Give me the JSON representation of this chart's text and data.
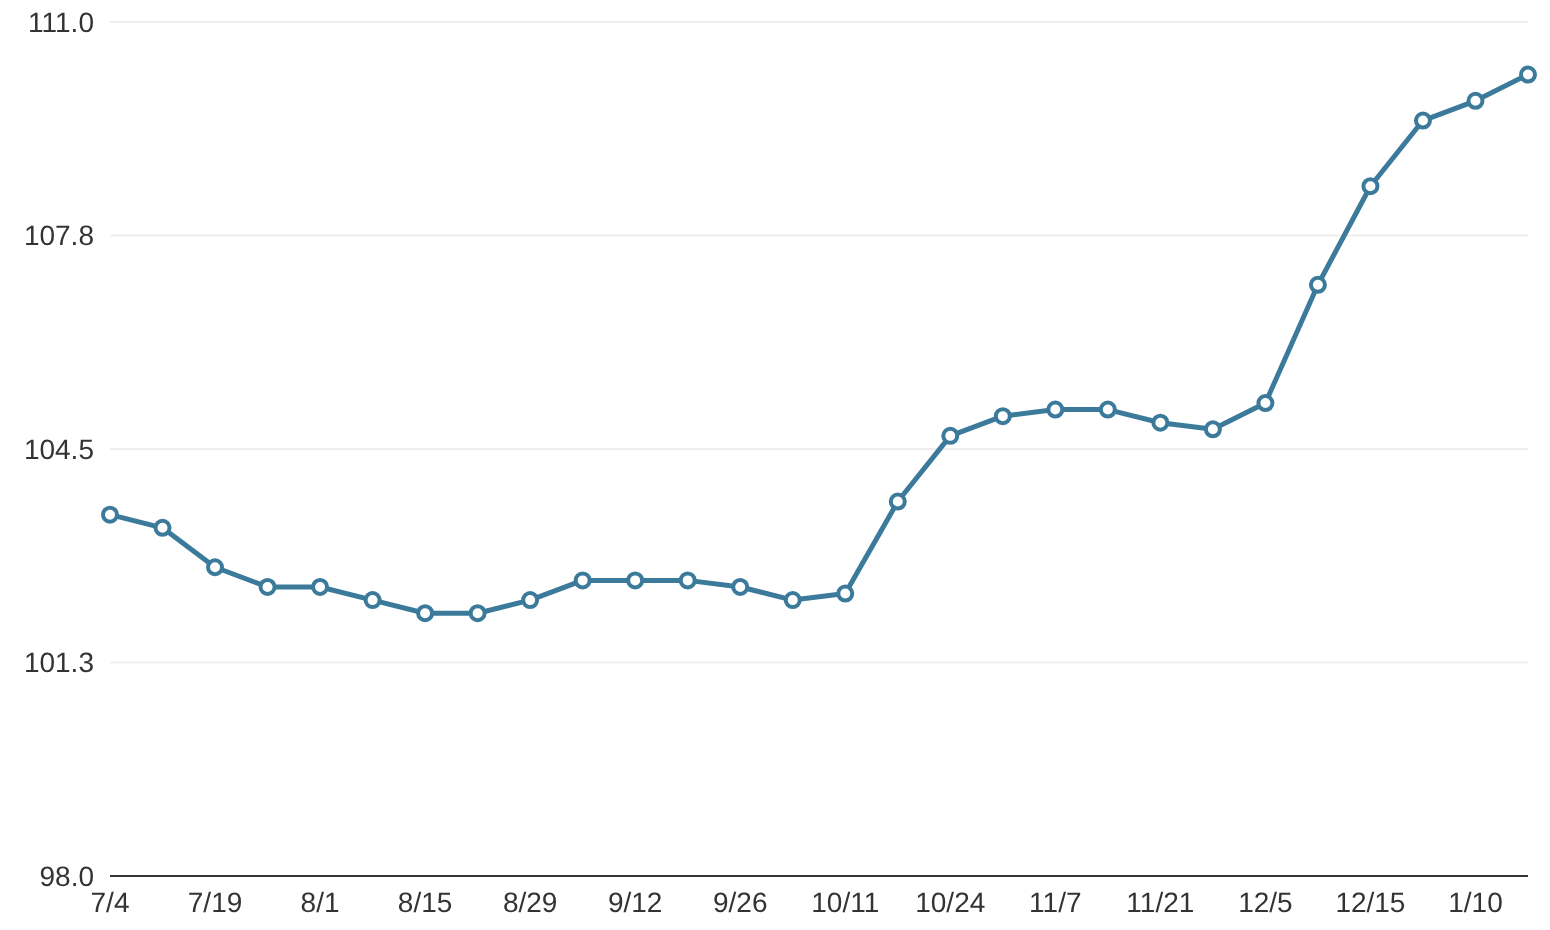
{
  "chart_data": {
    "type": "line",
    "categories": [
      "7/4",
      null,
      "7/19",
      null,
      "8/1",
      null,
      "8/15",
      null,
      "8/29",
      null,
      "9/12",
      null,
      "9/26",
      null,
      "10/11",
      null,
      "10/24",
      null,
      "11/7",
      null,
      "11/21",
      null,
      "12/5",
      null,
      "12/15",
      null,
      "1/10",
      null
    ],
    "values": [
      103.5,
      103.3,
      102.7,
      102.4,
      102.4,
      102.2,
      102.0,
      102.0,
      102.2,
      102.5,
      102.5,
      102.5,
      102.4,
      102.2,
      102.3,
      103.7,
      104.7,
      105.0,
      105.1,
      105.1,
      104.9,
      104.8,
      105.2,
      107.0,
      108.5,
      109.5,
      109.8,
      110.2
    ],
    "color": "#3b7a9a",
    "ylim": [
      98,
      111
    ],
    "yticks": [
      {
        "value": 98,
        "label": "98.0"
      },
      {
        "value": 101.25,
        "label": "101.3"
      },
      {
        "value": 104.5,
        "label": "104.5"
      },
      {
        "value": 107.75,
        "label": "107.8"
      },
      {
        "value": 111,
        "label": "111.0"
      }
    ],
    "grid": "y",
    "marker": "circle",
    "line_style": "solid"
  }
}
